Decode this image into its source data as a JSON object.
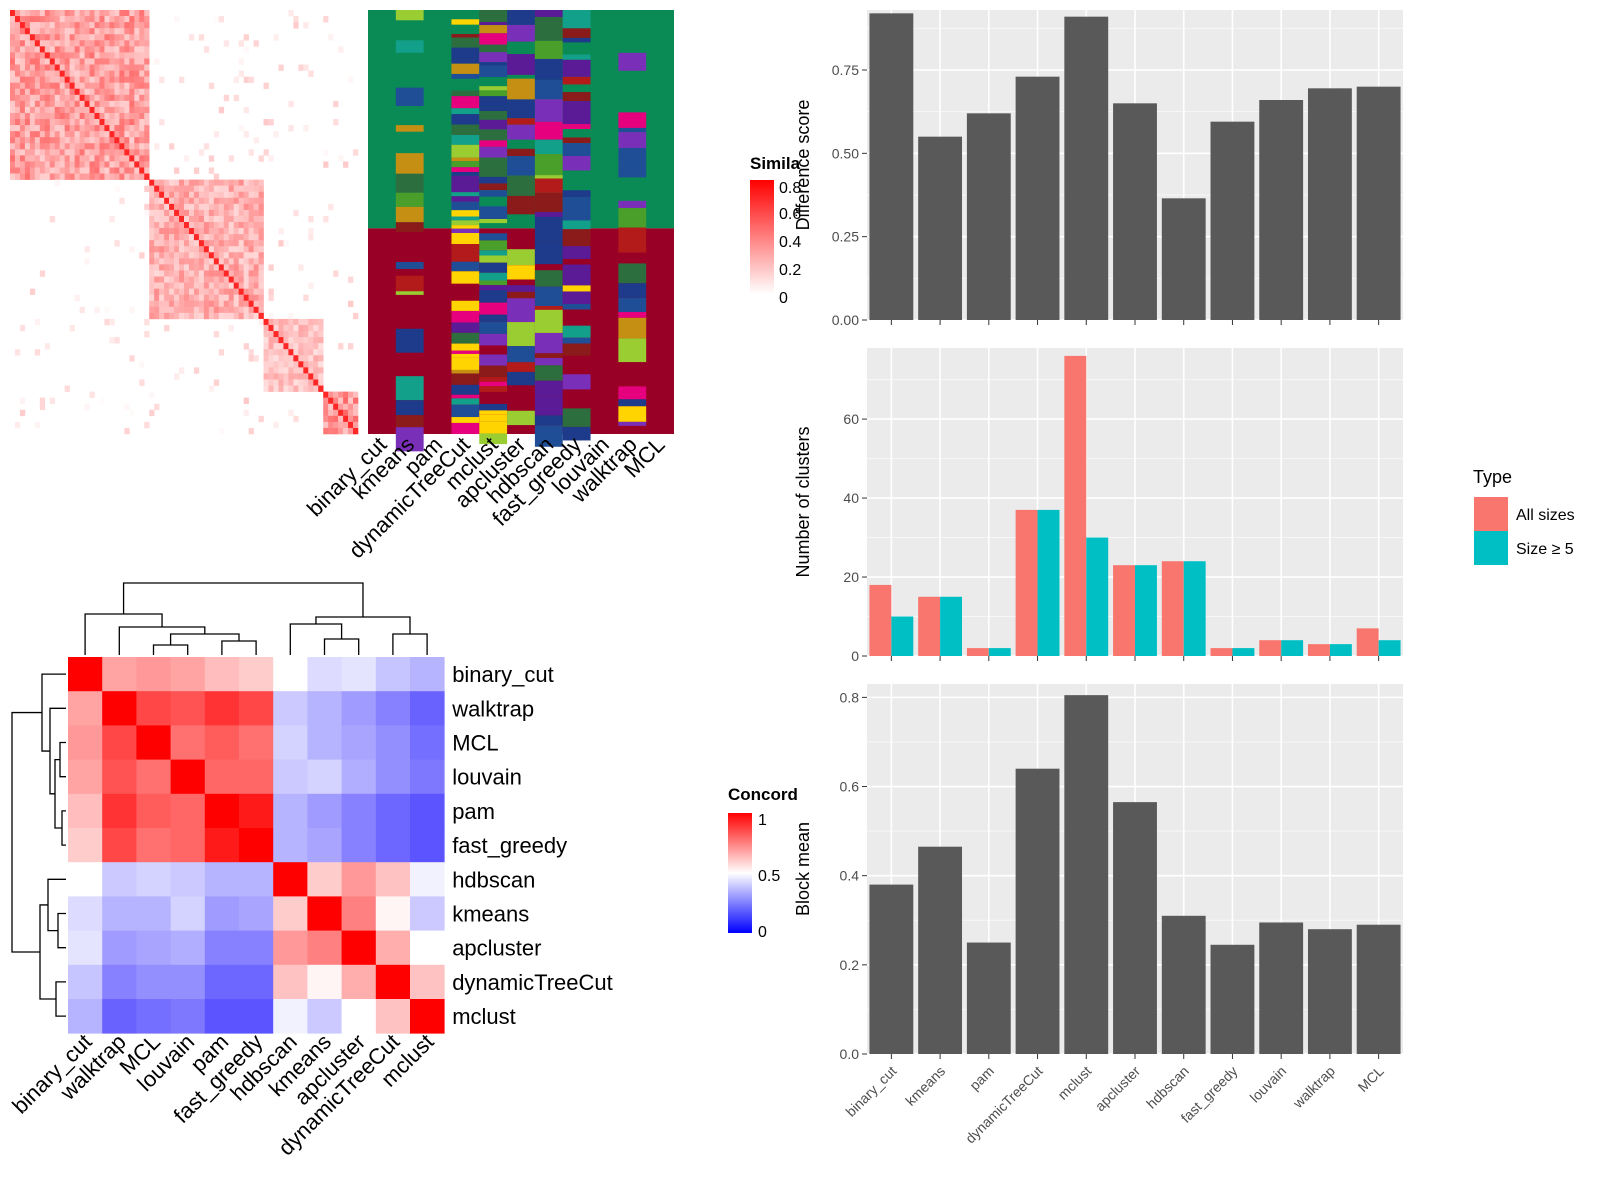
{
  "similarity_panel": {
    "legend": {
      "title": "Simila",
      "ticks": [
        "0.8",
        "0.6",
        "0.4",
        "0.2",
        "0"
      ]
    },
    "method_labels": [
      "binary_cut",
      "kmeans",
      "pam",
      "dynamicTreeCut",
      "mclust",
      "apcluster",
      "hdbscan",
      "fast_greedy",
      "louvain",
      "walktrap",
      "MCL"
    ]
  },
  "concordance_panel": {
    "legend": {
      "title": "Concord",
      "ticks": [
        "1",
        "0.5",
        "0"
      ]
    },
    "methods": [
      "binary_cut",
      "walktrap",
      "MCL",
      "louvain",
      "pam",
      "fast_greedy",
      "hdbscan",
      "kmeans",
      "apcluster",
      "dynamicTreeCut",
      "mclust"
    ],
    "matrix": [
      [
        1.0,
        0.68,
        0.7,
        0.68,
        0.63,
        0.6,
        0.5,
        0.42,
        0.44,
        0.37,
        0.33
      ],
      [
        0.68,
        1.0,
        0.86,
        0.84,
        0.9,
        0.86,
        0.38,
        0.33,
        0.28,
        0.22,
        0.15
      ],
      [
        0.7,
        0.86,
        1.0,
        0.78,
        0.82,
        0.78,
        0.4,
        0.33,
        0.3,
        0.25,
        0.18
      ],
      [
        0.68,
        0.84,
        0.78,
        1.0,
        0.8,
        0.8,
        0.38,
        0.4,
        0.32,
        0.25,
        0.2
      ],
      [
        0.63,
        0.9,
        0.82,
        0.8,
        1.0,
        0.95,
        0.33,
        0.28,
        0.22,
        0.16,
        0.12
      ],
      [
        0.6,
        0.86,
        0.78,
        0.8,
        0.95,
        1.0,
        0.33,
        0.3,
        0.22,
        0.16,
        0.12
      ],
      [
        0.5,
        0.38,
        0.4,
        0.38,
        0.33,
        0.33,
        1.0,
        0.6,
        0.7,
        0.62,
        0.47
      ],
      [
        0.42,
        0.33,
        0.33,
        0.4,
        0.28,
        0.3,
        0.6,
        1.0,
        0.75,
        0.52,
        0.38
      ],
      [
        0.44,
        0.28,
        0.3,
        0.32,
        0.22,
        0.22,
        0.7,
        0.75,
        1.0,
        0.66,
        0.5
      ],
      [
        0.37,
        0.22,
        0.25,
        0.25,
        0.16,
        0.16,
        0.62,
        0.52,
        0.66,
        1.0,
        0.62
      ],
      [
        0.33,
        0.15,
        0.18,
        0.2,
        0.12,
        0.12,
        0.47,
        0.38,
        0.5,
        0.62,
        1.0
      ]
    ]
  },
  "chart_data": [
    {
      "type": "bar",
      "categories": [
        "binary_cut",
        "kmeans",
        "pam",
        "dynamicTreeCut",
        "mclust",
        "apcluster",
        "hdbscan",
        "fast_greedy",
        "louvain",
        "walktrap",
        "MCL"
      ],
      "values": [
        0.92,
        0.55,
        0.62,
        0.73,
        0.91,
        0.65,
        0.365,
        0.595,
        0.66,
        0.695,
        0.7
      ],
      "ylabel": "Difference score",
      "ylim": [
        0,
        0.93
      ],
      "yticks": [
        "0.00",
        "0.25",
        "0.50",
        "0.75"
      ],
      "ytick_values": [
        0,
        0.25,
        0.5,
        0.75
      ],
      "grid": true
    },
    {
      "type": "bar",
      "categories": [
        "binary_cut",
        "kmeans",
        "pam",
        "dynamicTreeCut",
        "mclust",
        "apcluster",
        "hdbscan",
        "fast_greedy",
        "louvain",
        "walktrap",
        "MCL"
      ],
      "series": [
        {
          "name": "All sizes",
          "color": "#F8766D",
          "values": [
            18,
            15,
            2,
            37,
            76,
            23,
            24,
            2,
            4,
            3,
            7
          ]
        },
        {
          "name": "Size ≥ 5",
          "color": "#00BFC4",
          "values": [
            10,
            15,
            2,
            37,
            30,
            23,
            24,
            2,
            4,
            3,
            4
          ]
        }
      ],
      "ylabel": "Number of clusters",
      "ylim": [
        0,
        78
      ],
      "yticks": [
        "0",
        "20",
        "40",
        "60"
      ],
      "ytick_values": [
        0,
        20,
        40,
        60
      ],
      "legend": {
        "title": "Type",
        "position": "right"
      },
      "grid": true
    },
    {
      "type": "bar",
      "categories": [
        "binary_cut",
        "kmeans",
        "pam",
        "dynamicTreeCut",
        "mclust",
        "apcluster",
        "hdbscan",
        "fast_greedy",
        "louvain",
        "walktrap",
        "MCL"
      ],
      "values": [
        0.38,
        0.465,
        0.25,
        0.64,
        0.805,
        0.565,
        0.31,
        0.245,
        0.295,
        0.28,
        0.29
      ],
      "ylabel": "Block mean",
      "ylim": [
        0,
        0.83
      ],
      "yticks": [
        "0.0",
        "0.2",
        "0.4",
        "0.6",
        "0.8"
      ],
      "ytick_values": [
        0,
        0.2,
        0.4,
        0.6,
        0.8
      ],
      "grid": true
    }
  ]
}
